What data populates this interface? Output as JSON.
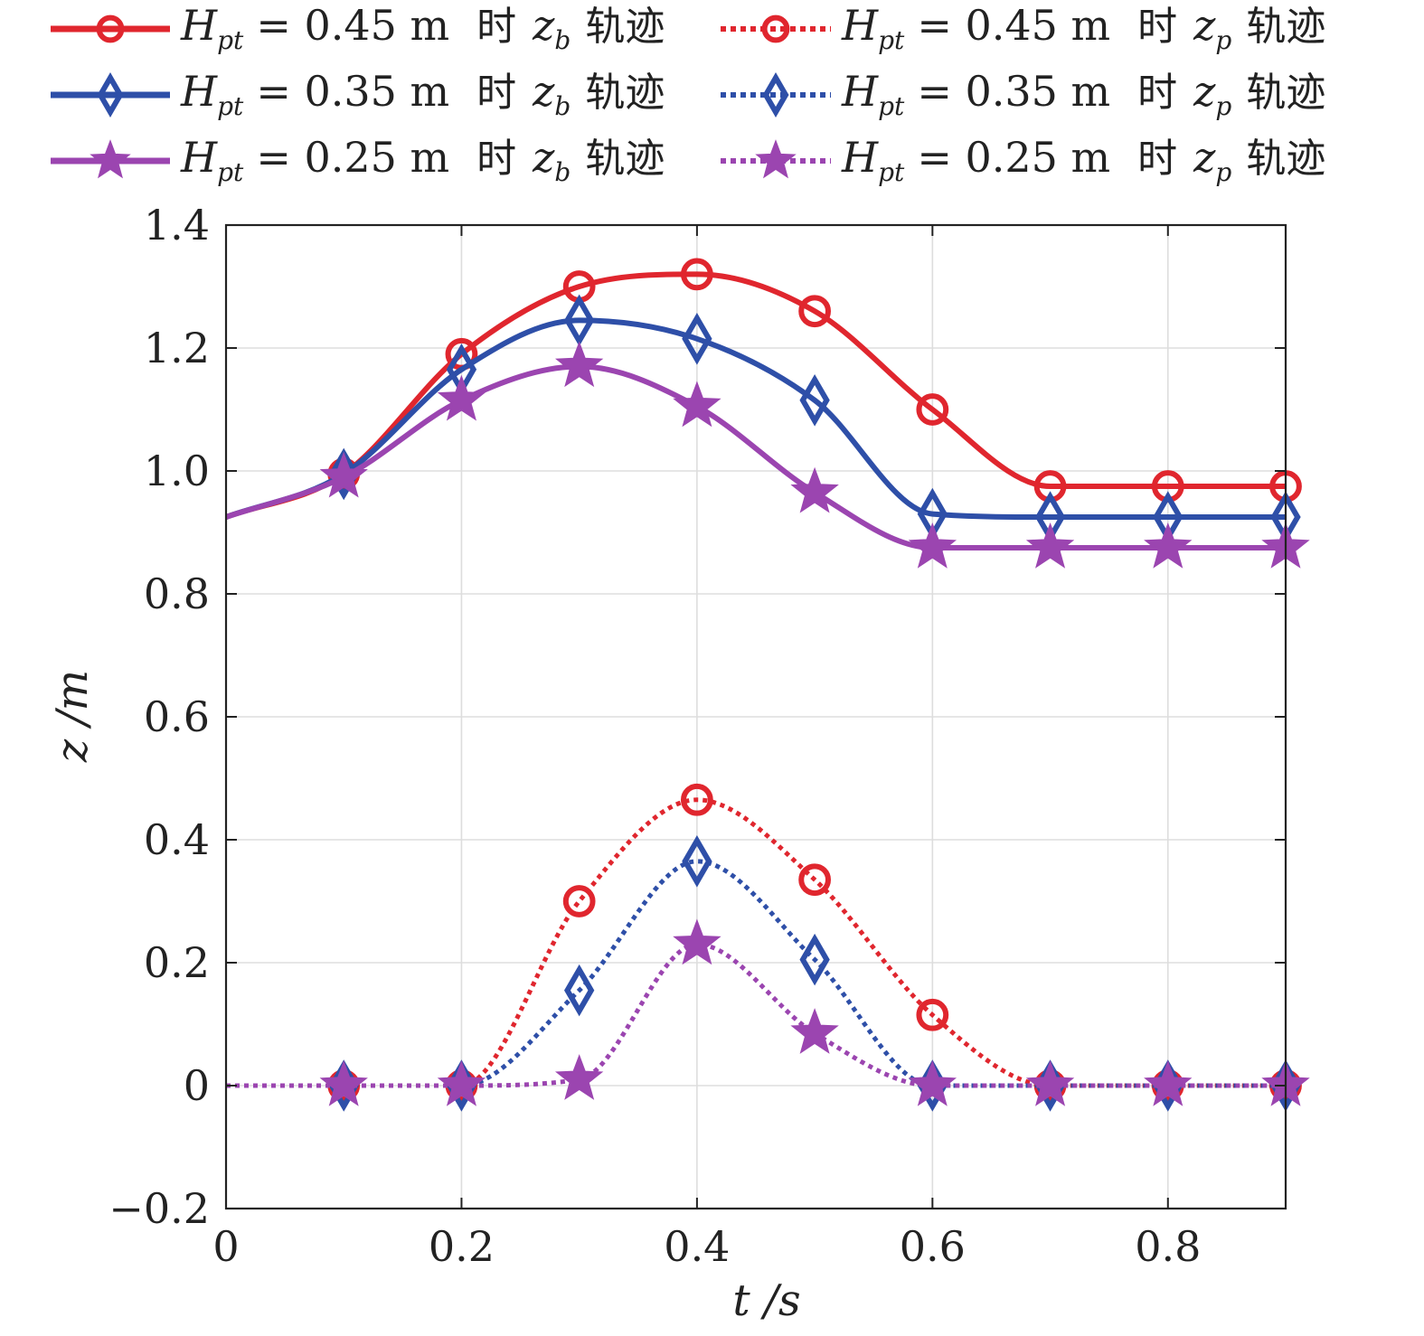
{
  "chart_data": {
    "type": "line",
    "xlabel": "t /s",
    "ylabel": "z /m",
    "xlim": [
      0,
      0.9
    ],
    "ylim": [
      -0.2,
      1.4
    ],
    "xticks": [
      "0",
      "0.2",
      "0.4",
      "0.6",
      "0.8"
    ],
    "yticks": [
      "−0.2",
      "0",
      "0.2",
      "0.4",
      "0.6",
      "0.8",
      "1.0",
      "1.2",
      "1.4"
    ],
    "grid": true,
    "legend_position": "top",
    "x": [
      0,
      0.1,
      0.2,
      0.3,
      0.4,
      0.5,
      0.6,
      0.7,
      0.8,
      0.9
    ],
    "series": [
      {
        "name": "H_pt = 0.45 m 时 z_b 轨迹",
        "color": "#e0262e",
        "dash": "solid",
        "marker": "circle",
        "values": [
          0.925,
          0.995,
          1.19,
          1.3,
          1.32,
          1.26,
          1.1,
          0.975,
          0.975,
          0.975
        ]
      },
      {
        "name": "H_pt = 0.45 m 时 z_p 轨迹",
        "color": "#e0262e",
        "dash": "dotted",
        "marker": "circle",
        "values": [
          0,
          0,
          0,
          0.3,
          0.465,
          0.335,
          0.115,
          0,
          0,
          0
        ]
      },
      {
        "name": "H_pt = 0.35 m 时 z_b 轨迹",
        "color": "#2e4fa8",
        "dash": "solid",
        "marker": "diamond",
        "values": [
          0.925,
          0.995,
          1.165,
          1.245,
          1.215,
          1.115,
          0.93,
          0.925,
          0.925,
          0.925
        ]
      },
      {
        "name": "H_pt = 0.35 m 时 z_p 轨迹",
        "color": "#2e4fa8",
        "dash": "dotted",
        "marker": "diamond",
        "values": [
          0,
          0,
          0,
          0.155,
          0.365,
          0.205,
          0,
          0,
          0,
          0
        ]
      },
      {
        "name": "H_pt = 0.25 m 时 z_b 轨迹",
        "color": "#9b45b0",
        "dash": "solid",
        "marker": "star",
        "values": [
          0.925,
          0.99,
          1.115,
          1.17,
          1.105,
          0.965,
          0.875,
          0.875,
          0.875,
          0.875
        ]
      },
      {
        "name": "H_pt = 0.25 m 时 z_p 轨迹",
        "color": "#9b45b0",
        "dash": "dotted",
        "marker": "star",
        "values": [
          0,
          0,
          0,
          0.01,
          0.23,
          0.085,
          0,
          0,
          0,
          0
        ]
      }
    ]
  },
  "legend": [
    {
      "series": 0,
      "h": "H",
      "sub": "pt",
      "eq": "= 0.45 m",
      "shi": "时",
      "var": "z",
      "var_sub": "b",
      "track": "轨迹"
    },
    {
      "series": 1,
      "h": "H",
      "sub": "pt",
      "eq": "= 0.45 m",
      "shi": "时",
      "var": "z",
      "var_sub": "p",
      "track": "轨迹"
    },
    {
      "series": 2,
      "h": "H",
      "sub": "pt",
      "eq": "= 0.35 m",
      "shi": "时",
      "var": "z",
      "var_sub": "b",
      "track": "轨迹"
    },
    {
      "series": 3,
      "h": "H",
      "sub": "pt",
      "eq": "= 0.35 m",
      "shi": "时",
      "var": "z",
      "var_sub": "p",
      "track": "轨迹"
    },
    {
      "series": 4,
      "h": "H",
      "sub": "pt",
      "eq": "= 0.25 m",
      "shi": "时",
      "var": "z",
      "var_sub": "b",
      "track": "轨迹"
    },
    {
      "series": 5,
      "h": "H",
      "sub": "pt",
      "eq": "= 0.25 m",
      "shi": "时",
      "var": "z",
      "var_sub": "p",
      "track": "轨迹"
    }
  ]
}
